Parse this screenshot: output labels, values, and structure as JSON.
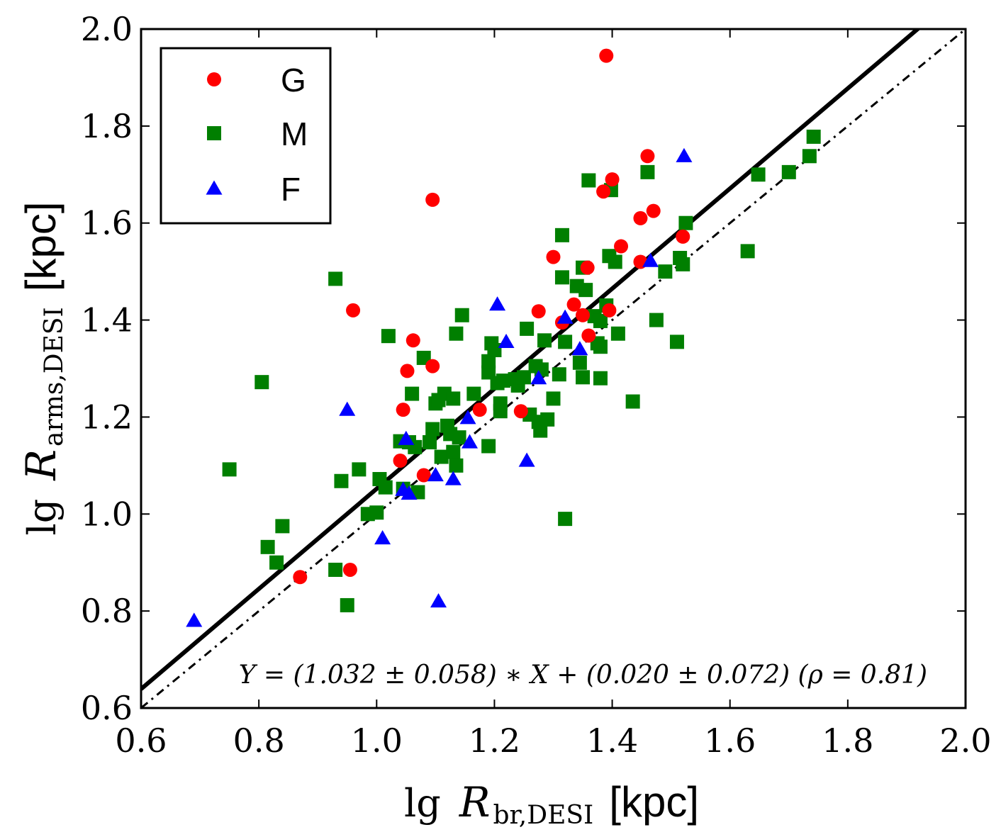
{
  "chart_data": {
    "type": "scatter",
    "xlabel": {
      "prefix": "lg",
      "var": "R",
      "sub": "br,DESI",
      "unit": "[kpc]"
    },
    "ylabel": {
      "prefix": "lg",
      "var": "R",
      "sub": "arms,DESI",
      "unit": "[kpc]"
    },
    "xlim": [
      0.6,
      2.0
    ],
    "ylim": [
      0.6,
      2.0
    ],
    "xticks": [
      "0.6",
      "0.8",
      "1.0",
      "1.2",
      "1.4",
      "1.6",
      "1.8",
      "2.0"
    ],
    "yticks": [
      "0.6",
      "0.8",
      "1.0",
      "1.2",
      "1.4",
      "1.6",
      "1.8",
      "2.0"
    ],
    "legend_position": "upper-left",
    "fit_line": {
      "slope": 1.032,
      "intercept": 0.02,
      "style": "solid"
    },
    "one_to_one_line": {
      "slope": 1.0,
      "intercept": 0.0,
      "style": "dash-dot"
    },
    "annotation": "Y = (1.032 ± 0.058) ∗ X + (0.020 ± 0.072) (ρ = 0.81)",
    "colors": {
      "G": "#ff0000",
      "M": "#007f00",
      "F": "#0000ff"
    },
    "series": [
      {
        "name": "G",
        "marker": "circle",
        "points": [
          [
            0.87,
            0.87
          ],
          [
            0.955,
            0.885
          ],
          [
            0.96,
            1.42
          ],
          [
            1.04,
            1.11
          ],
          [
            1.045,
            1.215
          ],
          [
            1.052,
            1.295
          ],
          [
            1.062,
            1.358
          ],
          [
            1.08,
            1.08
          ],
          [
            1.095,
            1.305
          ],
          [
            1.095,
            1.648
          ],
          [
            1.175,
            1.215
          ],
          [
            1.245,
            1.212
          ],
          [
            1.275,
            1.418
          ],
          [
            1.3,
            1.53
          ],
          [
            1.315,
            1.395
          ],
          [
            1.335,
            1.432
          ],
          [
            1.35,
            1.41
          ],
          [
            1.358,
            1.508
          ],
          [
            1.36,
            1.368
          ],
          [
            1.385,
            1.665
          ],
          [
            1.39,
            1.945
          ],
          [
            1.395,
            1.42
          ],
          [
            1.4,
            1.69
          ],
          [
            1.415,
            1.552
          ],
          [
            1.448,
            1.61
          ],
          [
            1.448,
            1.52
          ],
          [
            1.46,
            1.738
          ],
          [
            1.47,
            1.625
          ],
          [
            1.52,
            1.572
          ]
        ]
      },
      {
        "name": "M",
        "marker": "square",
        "points": [
          [
            0.75,
            1.092
          ],
          [
            0.805,
            1.272
          ],
          [
            0.815,
            0.932
          ],
          [
            0.83,
            0.9
          ],
          [
            0.84,
            0.975
          ],
          [
            0.93,
            0.885
          ],
          [
            0.93,
            1.485
          ],
          [
            0.94,
            1.068
          ],
          [
            0.95,
            0.812
          ],
          [
            0.97,
            1.092
          ],
          [
            0.985,
            1.0
          ],
          [
            1.0,
            1.003
          ],
          [
            1.005,
            1.072
          ],
          [
            1.015,
            1.055
          ],
          [
            1.02,
            1.367
          ],
          [
            1.04,
            1.15
          ],
          [
            1.045,
            1.052
          ],
          [
            1.055,
            1.148
          ],
          [
            1.06,
            1.248
          ],
          [
            1.065,
            1.138
          ],
          [
            1.07,
            1.045
          ],
          [
            1.08,
            1.322
          ],
          [
            1.09,
            1.148
          ],
          [
            1.095,
            1.175
          ],
          [
            1.1,
            1.228
          ],
          [
            1.105,
            1.235
          ],
          [
            1.11,
            1.118
          ],
          [
            1.115,
            1.248
          ],
          [
            1.12,
            1.182
          ],
          [
            1.125,
            1.165
          ],
          [
            1.13,
            1.238
          ],
          [
            1.13,
            1.128
          ],
          [
            1.135,
            1.1
          ],
          [
            1.135,
            1.372
          ],
          [
            1.14,
            1.158
          ],
          [
            1.145,
            1.41
          ],
          [
            1.165,
            1.248
          ],
          [
            1.19,
            1.14
          ],
          [
            1.19,
            1.292
          ],
          [
            1.19,
            1.315
          ],
          [
            1.195,
            1.352
          ],
          [
            1.2,
            1.338
          ],
          [
            1.205,
            1.27
          ],
          [
            1.21,
            1.228
          ],
          [
            1.21,
            1.212
          ],
          [
            1.215,
            1.275
          ],
          [
            1.235,
            1.278
          ],
          [
            1.24,
            1.265
          ],
          [
            1.25,
            1.282
          ],
          [
            1.255,
            1.382
          ],
          [
            1.26,
            1.205
          ],
          [
            1.27,
            1.305
          ],
          [
            1.275,
            1.19
          ],
          [
            1.278,
            1.172
          ],
          [
            1.28,
            1.298
          ],
          [
            1.285,
            1.358
          ],
          [
            1.29,
            1.195
          ],
          [
            1.3,
            1.238
          ],
          [
            1.31,
            1.288
          ],
          [
            1.315,
            1.575
          ],
          [
            1.315,
            1.488
          ],
          [
            1.32,
            1.355
          ],
          [
            1.32,
            0.99
          ],
          [
            1.34,
            1.47
          ],
          [
            1.345,
            1.312
          ],
          [
            1.35,
            1.508
          ],
          [
            1.35,
            1.282
          ],
          [
            1.355,
            1.462
          ],
          [
            1.36,
            1.688
          ],
          [
            1.37,
            1.408
          ],
          [
            1.375,
            1.352
          ],
          [
            1.38,
            1.345
          ],
          [
            1.38,
            1.28
          ],
          [
            1.38,
            1.398
          ],
          [
            1.39,
            1.43
          ],
          [
            1.395,
            1.532
          ],
          [
            1.398,
            1.668
          ],
          [
            1.405,
            1.52
          ],
          [
            1.41,
            1.372
          ],
          [
            1.435,
            1.232
          ],
          [
            1.46,
            1.705
          ],
          [
            1.475,
            1.4
          ],
          [
            1.49,
            1.5
          ],
          [
            1.51,
            1.355
          ],
          [
            1.515,
            1.528
          ],
          [
            1.52,
            1.515
          ],
          [
            1.525,
            1.6
          ],
          [
            1.63,
            1.542
          ],
          [
            1.648,
            1.7
          ],
          [
            1.7,
            1.705
          ],
          [
            1.735,
            1.738
          ],
          [
            1.742,
            1.778
          ]
        ]
      },
      {
        "name": "F",
        "marker": "triangle",
        "points": [
          [
            0.69,
            0.78
          ],
          [
            0.95,
            1.215
          ],
          [
            1.01,
            0.95
          ],
          [
            1.045,
            1.05
          ],
          [
            1.05,
            1.155
          ],
          [
            1.055,
            1.042
          ],
          [
            1.1,
            1.08
          ],
          [
            1.105,
            0.82
          ],
          [
            1.13,
            1.072
          ],
          [
            1.155,
            1.198
          ],
          [
            1.158,
            1.148
          ],
          [
            1.205,
            1.432
          ],
          [
            1.22,
            1.355
          ],
          [
            1.255,
            1.11
          ],
          [
            1.275,
            1.28
          ],
          [
            1.32,
            1.405
          ],
          [
            1.345,
            1.34
          ],
          [
            1.465,
            1.522
          ],
          [
            1.522,
            1.738
          ]
        ]
      }
    ]
  }
}
